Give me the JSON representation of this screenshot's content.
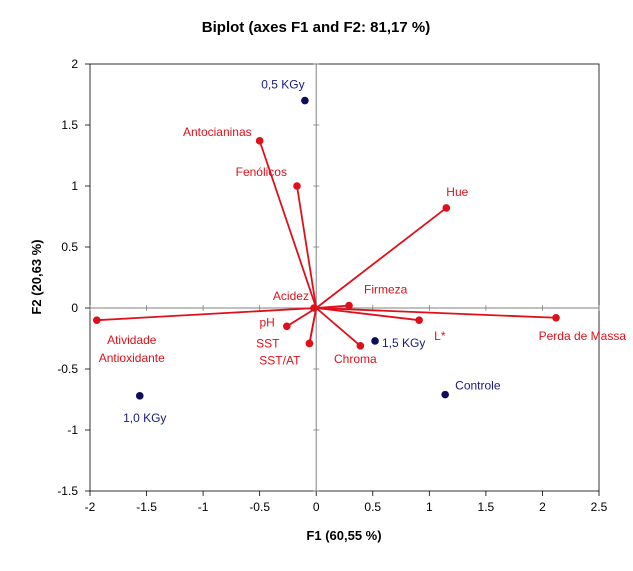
{
  "chart_data": {
    "type": "scatter",
    "subtype": "biplot",
    "title": "Biplot (axes F1 and F2: 81,17 %)",
    "xlabel": "F1 (60,55 %)",
    "ylabel": "F2 (20,63 %)",
    "xlim": [
      -2,
      2.5
    ],
    "ylim": [
      -1.5,
      2
    ],
    "xticks": [
      -2,
      -1.5,
      -1,
      -0.5,
      0,
      0.5,
      1,
      1.5,
      2,
      2.5
    ],
    "xtick_labels": [
      "-2",
      "-1.5",
      "-1",
      "-0.5",
      "0",
      "0.5",
      "1",
      "1.5",
      "2",
      "2.5"
    ],
    "yticks": [
      -1.5,
      -1,
      -0.5,
      0,
      0.5,
      1,
      1.5,
      2
    ],
    "ytick_labels": [
      "-1.5",
      "-1",
      "-0.5",
      "0",
      "0.5",
      "1",
      "1.5",
      "2"
    ],
    "grid": false,
    "colors": {
      "variables": "#e0101a",
      "observations": "#0d0d5e",
      "observation_labels": "#1a1a80",
      "axes": "#808080"
    },
    "variables": [
      {
        "name": "Antocianinas",
        "x": -0.5,
        "y": 1.37
      },
      {
        "name": "Fenólicos",
        "x": -0.17,
        "y": 1.0
      },
      {
        "name": "Hue",
        "x": 1.15,
        "y": 0.82
      },
      {
        "name": "Acidez",
        "x": -0.02,
        "y": 0.0
      },
      {
        "name": "Firmeza",
        "x": 0.29,
        "y": 0.02
      },
      {
        "name": "pH",
        "x": -0.26,
        "y": -0.15
      },
      {
        "name": "SST",
        "x": -0.06,
        "y": -0.29
      },
      {
        "name": "SST/AT",
        "x": -0.06,
        "y": -0.29
      },
      {
        "name": "Chroma",
        "x": 0.39,
        "y": -0.31
      },
      {
        "name": "L*",
        "x": 0.91,
        "y": -0.1
      },
      {
        "name": "Perda de Massa",
        "x": 2.12,
        "y": -0.08
      },
      {
        "name": "Atividade Antioxidante",
        "x": -1.94,
        "y": -0.1
      }
    ],
    "observations": [
      {
        "name": "0,5 KGy",
        "x": -0.1,
        "y": 1.7
      },
      {
        "name": "1,5 KGy",
        "x": 0.52,
        "y": -0.27
      },
      {
        "name": "Controle",
        "x": 1.14,
        "y": -0.71
      },
      {
        "name": "1,0 KGy",
        "x": -1.56,
        "y": -0.72
      }
    ]
  }
}
